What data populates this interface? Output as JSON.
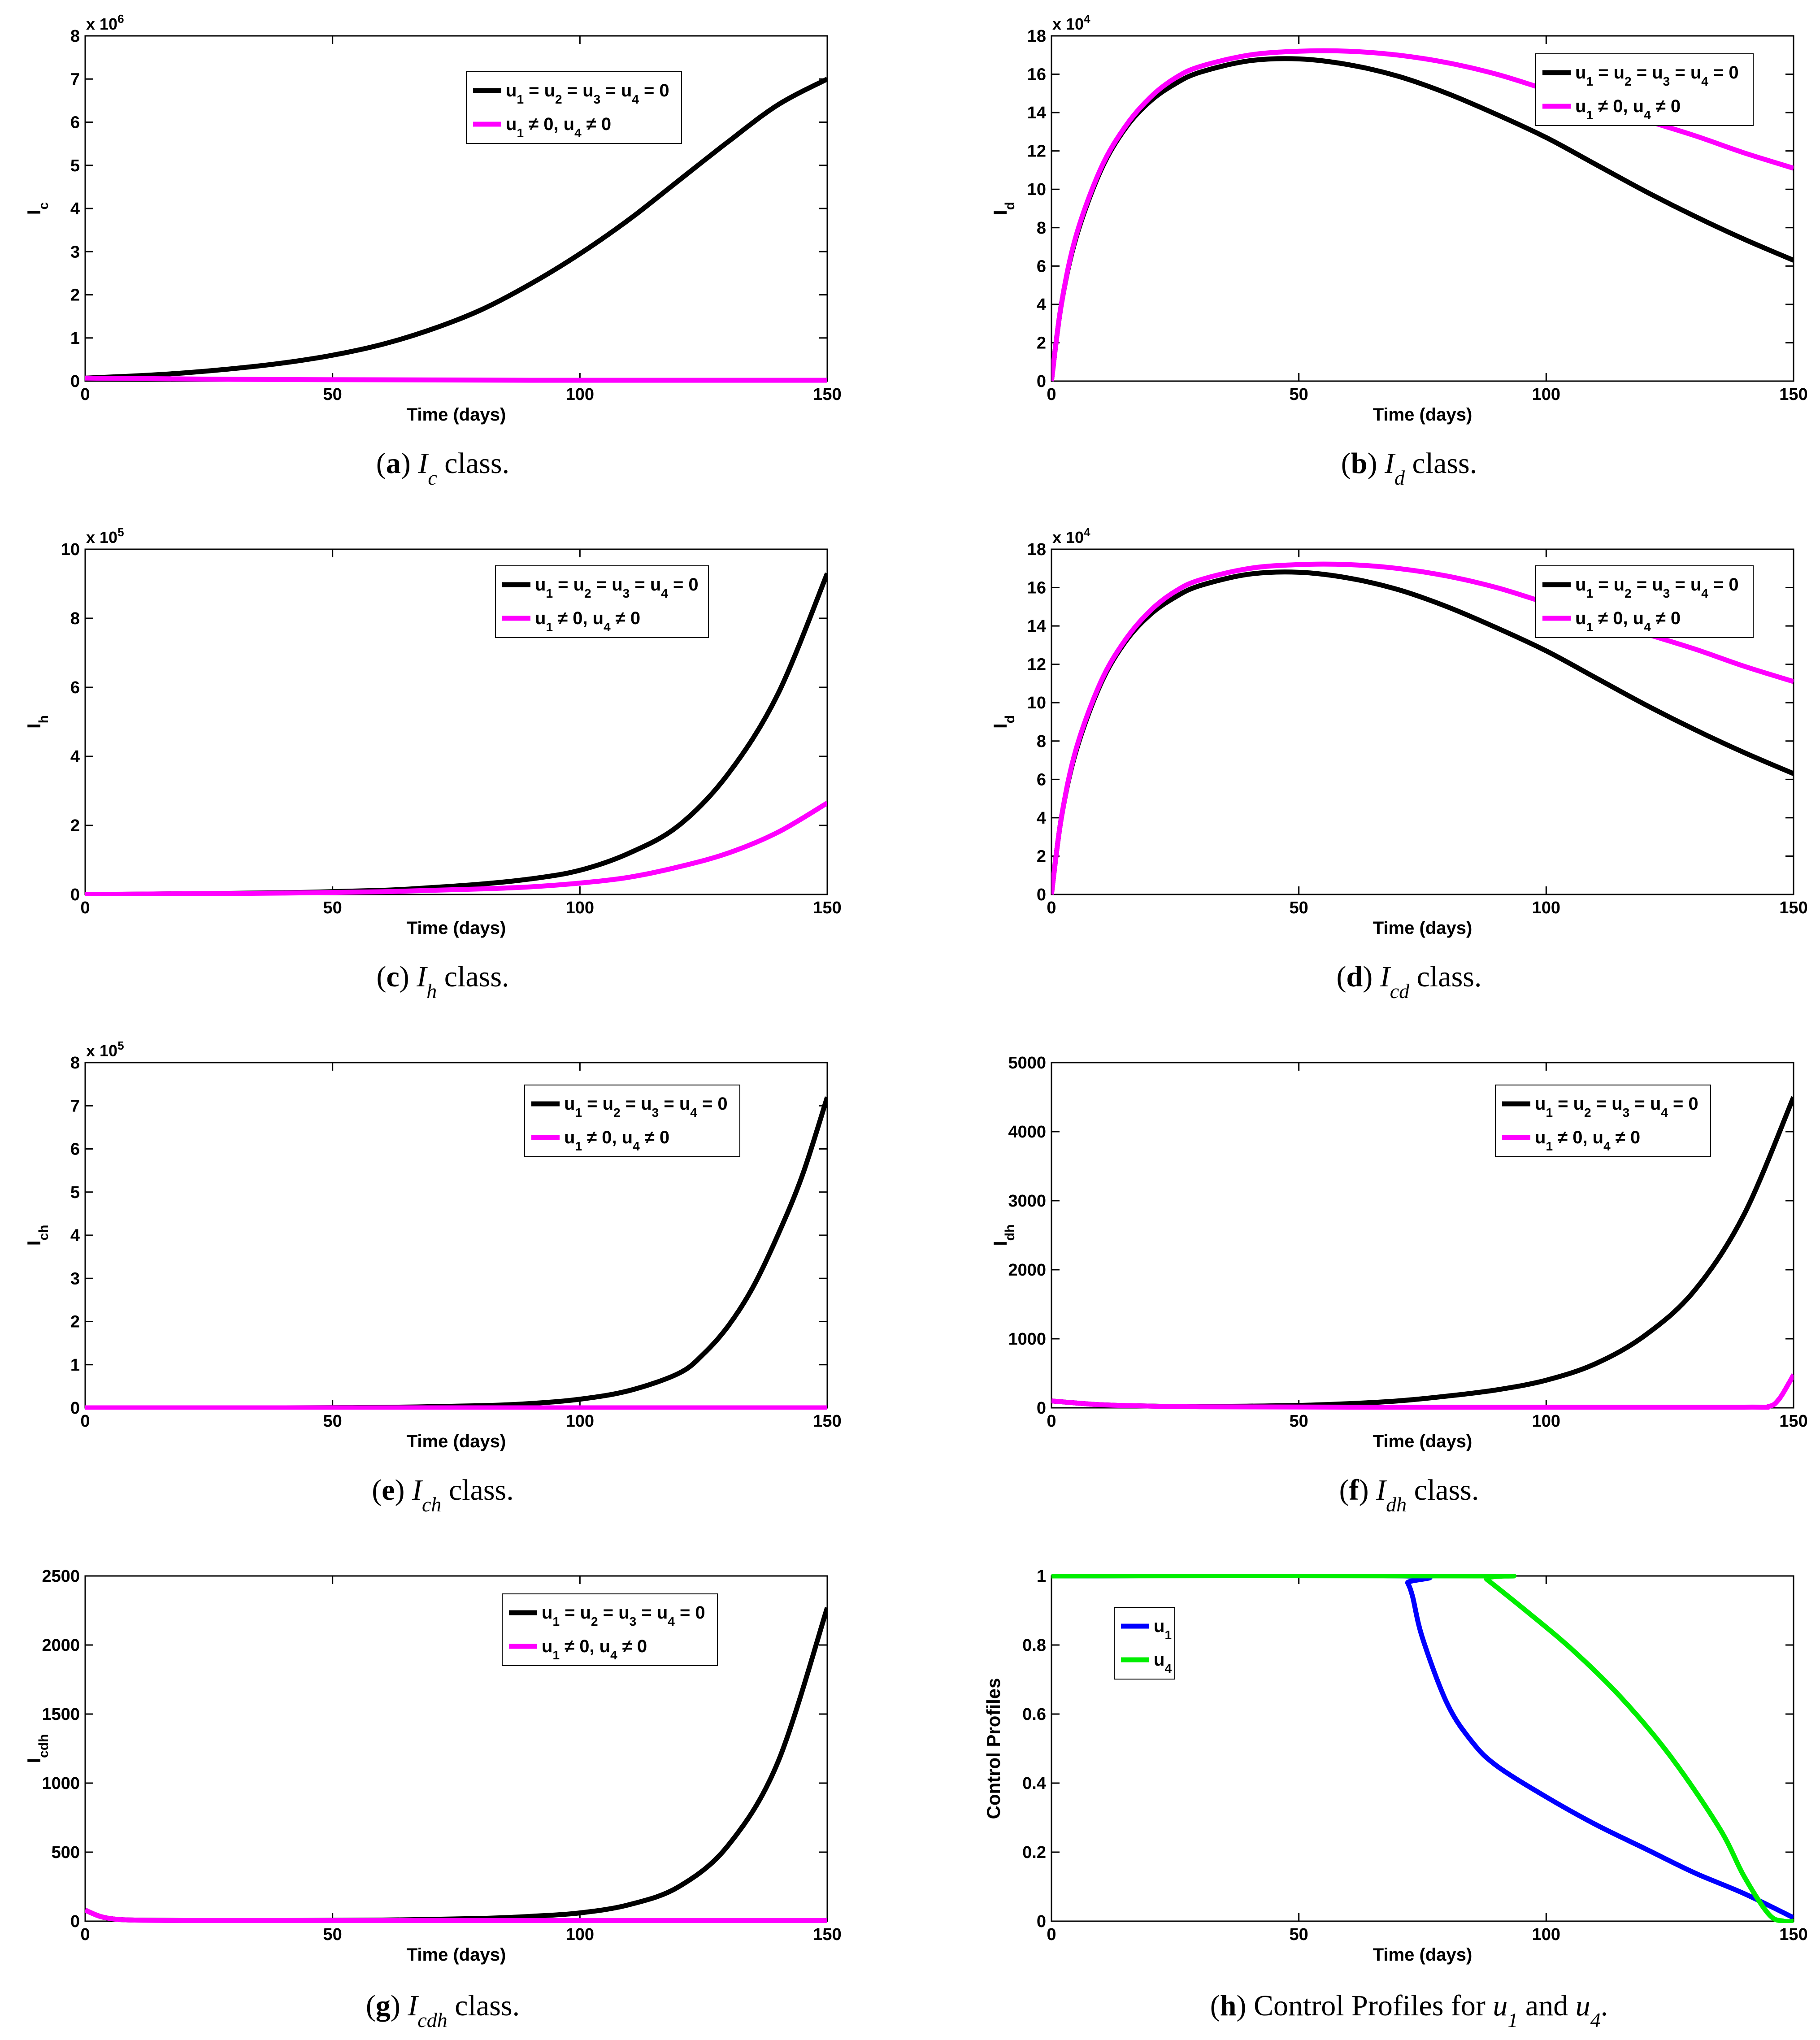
{
  "legend_common": {
    "no_control": "u1 = u2 = u3 = u4 = 0",
    "with_control": "u1 ≠ 0, u4 ≠ 0"
  },
  "chart_data": [
    {
      "id": "a",
      "type": "line",
      "caption": {
        "letter": "a",
        "var": "I",
        "sub": "c",
        "rest": "class."
      },
      "xlabel": "Time (days)",
      "ylabel": {
        "main": "I",
        "sub": "c"
      },
      "xlim": [
        0,
        150
      ],
      "ylim": [
        0,
        8
      ],
      "xticks": [
        0,
        50,
        100,
        150
      ],
      "yticks": [
        0,
        1,
        2,
        3,
        4,
        5,
        6,
        7,
        8
      ],
      "exponent": "x 10^6",
      "legend": "top-center",
      "series": [
        {
          "name": "u1 = u2 = u3 = u4 = 0",
          "color": "#000000",
          "x": [
            0,
            10,
            20,
            30,
            40,
            50,
            60,
            70,
            80,
            90,
            100,
            110,
            120,
            130,
            140,
            150
          ],
          "y": [
            0.07,
            0.12,
            0.19,
            0.29,
            0.42,
            0.6,
            0.85,
            1.2,
            1.65,
            2.25,
            2.95,
            3.75,
            4.65,
            5.55,
            6.4,
            7.0
          ]
        },
        {
          "name": "u1 ≠ 0, u4 ≠ 0",
          "color": "#ff00ff",
          "x": [
            0,
            10,
            30,
            60,
            90,
            120,
            150
          ],
          "y": [
            0.07,
            0.06,
            0.04,
            0.03,
            0.02,
            0.02,
            0.02
          ]
        }
      ]
    },
    {
      "id": "b",
      "type": "line",
      "caption": {
        "letter": "b",
        "var": "I",
        "sub": "d",
        "rest": "class."
      },
      "xlabel": "Time (days)",
      "ylabel": {
        "main": "I",
        "sub": "d"
      },
      "xlim": [
        0,
        150
      ],
      "ylim": [
        0,
        18
      ],
      "xticks": [
        0,
        50,
        100,
        150
      ],
      "yticks": [
        0,
        2,
        4,
        6,
        8,
        10,
        12,
        14,
        16,
        18
      ],
      "exponent": "x 10^4",
      "legend": "top-right",
      "series": [
        {
          "name": "u1 = u2 = u3 = u4 = 0",
          "color": "#000000",
          "x": [
            0,
            2,
            5,
            10,
            15,
            20,
            25,
            30,
            40,
            50,
            60,
            70,
            80,
            90,
            100,
            110,
            120,
            130,
            140,
            150
          ],
          "y": [
            0,
            4.0,
            7.5,
            11.0,
            13.2,
            14.6,
            15.5,
            16.1,
            16.7,
            16.8,
            16.5,
            15.9,
            15.0,
            13.9,
            12.7,
            11.3,
            9.9,
            8.6,
            7.4,
            6.3
          ]
        },
        {
          "name": "u1 ≠ 0, u4 ≠ 0",
          "color": "#ff00ff",
          "x": [
            0,
            2,
            5,
            10,
            15,
            20,
            25,
            30,
            40,
            50,
            60,
            70,
            80,
            90,
            100,
            110,
            120,
            130,
            140,
            150
          ],
          "y": [
            0,
            4.0,
            7.6,
            11.1,
            13.3,
            14.8,
            15.8,
            16.4,
            17.0,
            17.2,
            17.2,
            17.0,
            16.6,
            16.0,
            15.2,
            14.4,
            13.6,
            12.8,
            11.9,
            11.1
          ]
        }
      ]
    },
    {
      "id": "c",
      "type": "line",
      "caption": {
        "letter": "c",
        "var": "I",
        "sub": "h",
        "rest": "class."
      },
      "xlabel": "Time (days)",
      "ylabel": {
        "main": "I",
        "sub": "h"
      },
      "xlim": [
        0,
        150
      ],
      "ylim": [
        0,
        10
      ],
      "xticks": [
        0,
        50,
        100,
        150
      ],
      "yticks": [
        0,
        2,
        4,
        6,
        8,
        10
      ],
      "exponent": "x 10^5",
      "legend": "top-right",
      "series": [
        {
          "name": "u1 = u2 = u3 = u4 = 0",
          "color": "#000000",
          "x": [
            0,
            20,
            40,
            60,
            70,
            80,
            90,
            100,
            110,
            120,
            130,
            140,
            150
          ],
          "y": [
            0,
            0.02,
            0.05,
            0.12,
            0.2,
            0.3,
            0.45,
            0.7,
            1.2,
            2.0,
            3.5,
            5.8,
            9.3
          ]
        },
        {
          "name": "u1 ≠ 0, u4 ≠ 0",
          "color": "#ff00ff",
          "x": [
            0,
            20,
            40,
            60,
            70,
            80,
            90,
            100,
            110,
            120,
            130,
            140,
            150
          ],
          "y": [
            0,
            0.02,
            0.04,
            0.08,
            0.12,
            0.16,
            0.22,
            0.33,
            0.5,
            0.8,
            1.2,
            1.8,
            2.65
          ]
        }
      ]
    },
    {
      "id": "d",
      "type": "line",
      "caption": {
        "letter": "d",
        "var": "I",
        "sub": "cd",
        "rest": "class."
      },
      "xlabel": "Time (days)",
      "ylabel": {
        "main": "I",
        "sub": "d"
      },
      "xlim": [
        0,
        150
      ],
      "ylim": [
        0,
        18
      ],
      "xticks": [
        0,
        50,
        100,
        150
      ],
      "yticks": [
        0,
        2,
        4,
        6,
        8,
        10,
        12,
        14,
        16,
        18
      ],
      "exponent": "x 10^4",
      "legend": "top-right",
      "series": [
        {
          "name": "u1 = u2 = u3 = u4 = 0",
          "color": "#000000",
          "x": [
            0,
            2,
            5,
            10,
            15,
            20,
            25,
            30,
            40,
            50,
            60,
            70,
            80,
            90,
            100,
            110,
            120,
            130,
            140,
            150
          ],
          "y": [
            0,
            4.0,
            7.5,
            11.0,
            13.2,
            14.6,
            15.5,
            16.1,
            16.7,
            16.8,
            16.5,
            15.9,
            15.0,
            13.9,
            12.7,
            11.3,
            9.9,
            8.6,
            7.4,
            6.3
          ]
        },
        {
          "name": "u1 ≠ 0, u4 ≠ 0",
          "color": "#ff00ff",
          "x": [
            0,
            2,
            5,
            10,
            15,
            20,
            25,
            30,
            40,
            50,
            60,
            70,
            80,
            90,
            100,
            110,
            120,
            130,
            140,
            150
          ],
          "y": [
            0,
            4.0,
            7.6,
            11.1,
            13.3,
            14.8,
            15.8,
            16.4,
            17.0,
            17.2,
            17.2,
            17.0,
            16.6,
            16.0,
            15.2,
            14.4,
            13.6,
            12.8,
            11.9,
            11.1
          ]
        }
      ]
    },
    {
      "id": "e",
      "type": "line",
      "caption": {
        "letter": "e",
        "var": "I",
        "sub": "ch",
        "rest": "class."
      },
      "xlabel": "Time (days)",
      "ylabel": {
        "main": "I",
        "sub": "ch"
      },
      "xlim": [
        0,
        150
      ],
      "ylim": [
        0,
        8
      ],
      "xticks": [
        0,
        50,
        100,
        150
      ],
      "yticks": [
        0,
        1,
        2,
        3,
        4,
        5,
        6,
        7,
        8
      ],
      "exponent": "x 10^5",
      "legend": "top-right",
      "series": [
        {
          "name": "u1 = u2 = u3 = u4 = 0",
          "color": "#000000",
          "x": [
            0,
            40,
            60,
            80,
            90,
            100,
            110,
            120,
            125,
            130,
            135,
            140,
            145,
            150
          ],
          "y": [
            0,
            0,
            0.01,
            0.05,
            0.1,
            0.2,
            0.4,
            0.8,
            1.25,
            1.9,
            2.8,
            4.0,
            5.4,
            7.2
          ]
        },
        {
          "name": "u1 ≠ 0, u4 ≠ 0",
          "color": "#ff00ff",
          "x": [
            0,
            150
          ],
          "y": [
            0,
            0
          ]
        }
      ]
    },
    {
      "id": "f",
      "type": "line",
      "caption": {
        "letter": "f",
        "var": "I",
        "sub": "dh",
        "rest": "class."
      },
      "xlabel": "Time (days)",
      "ylabel": {
        "main": "I",
        "sub": "dh"
      },
      "xlim": [
        0,
        150
      ],
      "ylim": [
        0,
        5000
      ],
      "xticks": [
        0,
        50,
        100,
        150
      ],
      "yticks": [
        0,
        1000,
        2000,
        3000,
        4000,
        5000
      ],
      "exponent": "",
      "legend": "top-right",
      "series": [
        {
          "name": "u1 = u2 = u3 = u4 = 0",
          "color": "#000000",
          "x": [
            0,
            5,
            10,
            20,
            30,
            40,
            50,
            60,
            70,
            80,
            90,
            100,
            110,
            120,
            130,
            140,
            150
          ],
          "y": [
            100,
            70,
            45,
            25,
            20,
            25,
            35,
            60,
            100,
            170,
            260,
            400,
            640,
            1050,
            1700,
            2800,
            4500
          ]
        },
        {
          "name": "u1 ≠ 0, u4 ≠ 0",
          "color": "#ff00ff",
          "x": [
            0,
            5,
            10,
            20,
            30,
            60,
            100,
            140,
            145,
            147,
            149,
            150
          ],
          "y": [
            100,
            70,
            45,
            25,
            15,
            10,
            10,
            10,
            20,
            120,
            350,
            480
          ]
        }
      ]
    },
    {
      "id": "g",
      "type": "line",
      "caption": {
        "letter": "g",
        "var": "I",
        "sub": "cdh",
        "rest": "class."
      },
      "xlabel": "Time (days)",
      "ylabel": {
        "main": "I",
        "sub": "cdh"
      },
      "xlim": [
        0,
        150
      ],
      "ylim": [
        0,
        2500
      ],
      "xticks": [
        0,
        50,
        100,
        150
      ],
      "yticks": [
        0,
        500,
        1000,
        1500,
        2000,
        2500
      ],
      "exponent": "",
      "legend": "top-right",
      "series": [
        {
          "name": "u1 = u2 = u3 = u4 = 0",
          "color": "#000000",
          "x": [
            0,
            3,
            6,
            10,
            20,
            40,
            60,
            80,
            90,
            100,
            110,
            120,
            130,
            140,
            150
          ],
          "y": [
            80,
            35,
            15,
            8,
            5,
            5,
            8,
            20,
            35,
            60,
            120,
            250,
            550,
            1150,
            2270
          ]
        },
        {
          "name": "u1 ≠ 0, u4 ≠ 0",
          "color": "#ff00ff",
          "x": [
            0,
            3,
            6,
            10,
            20,
            60,
            100,
            150
          ],
          "y": [
            80,
            35,
            15,
            8,
            5,
            5,
            5,
            5
          ]
        }
      ]
    },
    {
      "id": "h",
      "type": "line",
      "caption": {
        "letter": "h",
        "text": "Control Profiles for",
        "var1": "u",
        "sub1": "1",
        "and": "and",
        "var2": "u",
        "sub2": "4",
        "end": "."
      },
      "xlabel": "Time (days)",
      "ylabel": {
        "main": "Control Profiles",
        "sub": ""
      },
      "xlim": [
        0,
        150
      ],
      "ylim": [
        0,
        1
      ],
      "xticks": [
        0,
        50,
        100,
        150
      ],
      "yticks": [
        0,
        0.2,
        0.4,
        0.6,
        0.8,
        1
      ],
      "exponent": "",
      "legend": "top-left",
      "series": [
        {
          "name": "u1",
          "color": "#0000ff",
          "x": [
            0,
            71,
            72,
            73,
            75,
            80,
            85,
            90,
            100,
            110,
            120,
            130,
            140,
            150
          ],
          "y": [
            1,
            1,
            0.98,
            0.94,
            0.82,
            0.63,
            0.52,
            0.45,
            0.36,
            0.28,
            0.21,
            0.14,
            0.08,
            0.01
          ]
        },
        {
          "name": "u4",
          "color": "#00ee00",
          "x": [
            0,
            87,
            88,
            95,
            105,
            115,
            125,
            135,
            140,
            145,
            148,
            150
          ],
          "y": [
            1,
            1,
            0.99,
            0.91,
            0.79,
            0.65,
            0.48,
            0.27,
            0.13,
            0.02,
            0,
            0
          ]
        }
      ]
    }
  ]
}
